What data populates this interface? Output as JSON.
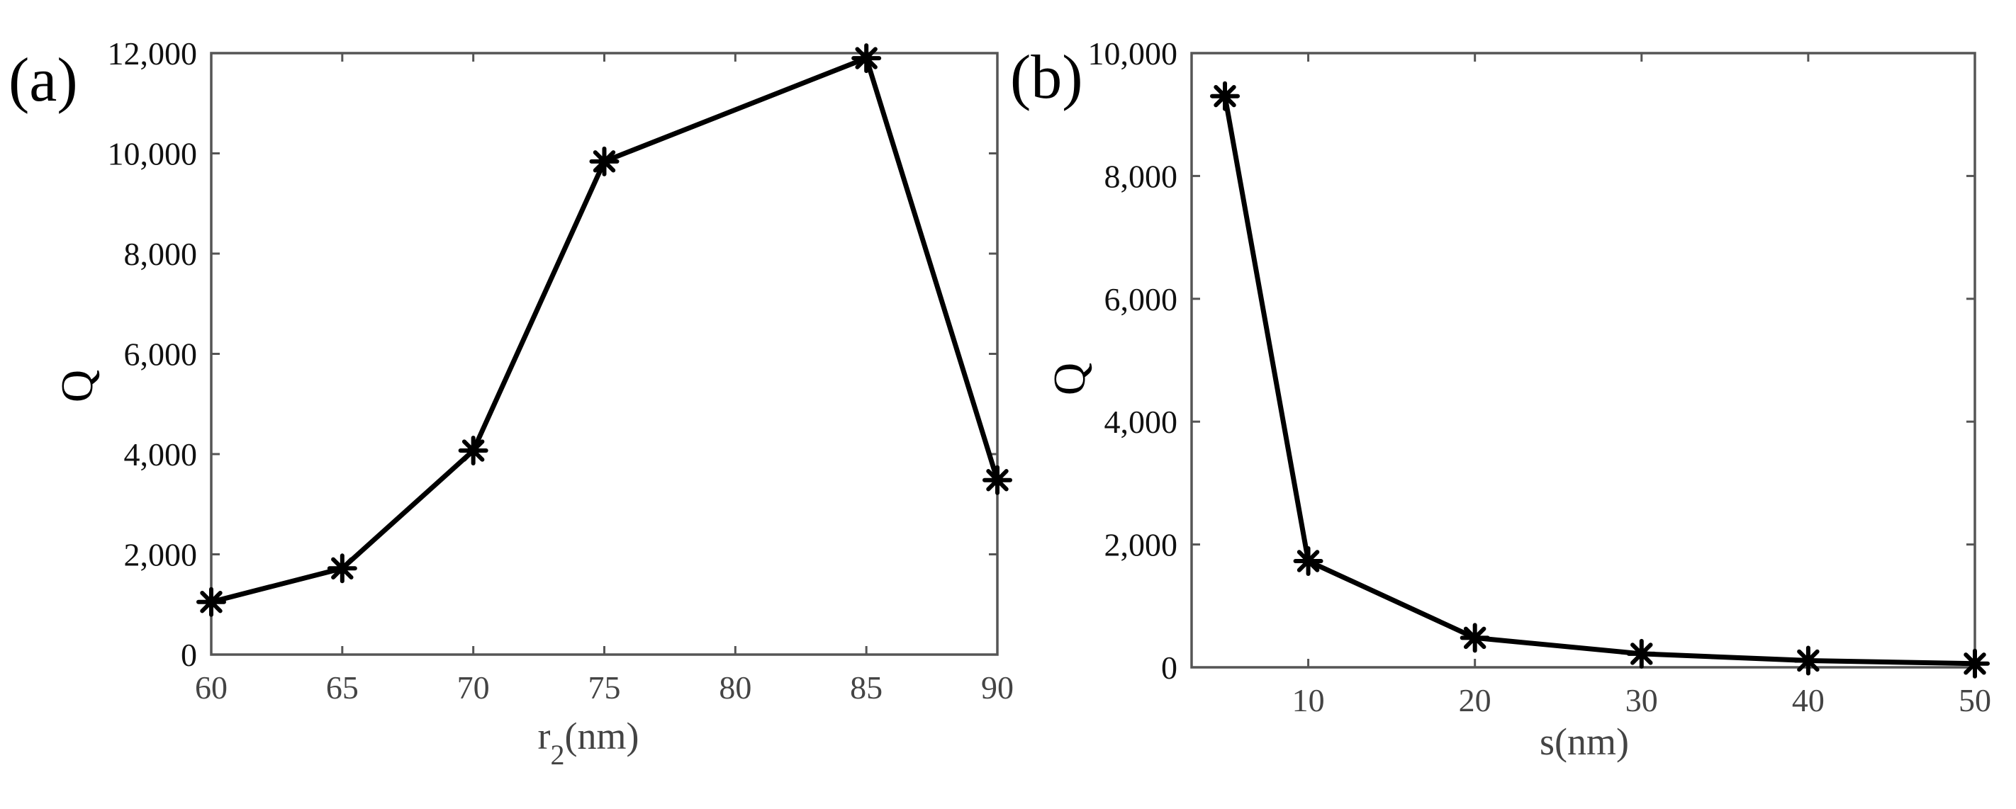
{
  "figure": {
    "panels": [
      {
        "id": "a",
        "label": "(a)"
      },
      {
        "id": "b",
        "label": "(b)"
      }
    ]
  },
  "colors": {
    "line": "#000000",
    "axis": "#555555",
    "tick_label_x": "#444444",
    "tick_label_y": "#111111",
    "background": "#ffffff"
  },
  "chart_data": [
    {
      "panel": "(a)",
      "type": "line",
      "title": "",
      "xlabel": "r2(nm)",
      "xlabel_main": "r",
      "xlabel_sub": "2",
      "xlabel_unit": "(nm)",
      "ylabel": "Q",
      "x": [
        60,
        65,
        70,
        75,
        85,
        90
      ],
      "series": [
        {
          "name": "Q",
          "marker": "asterisk",
          "values": [
            1050,
            1720,
            4070,
            9840,
            11900,
            3480
          ]
        }
      ],
      "xlim": [
        60,
        90
      ],
      "ylim": [
        0,
        12000
      ],
      "xticks": [
        60,
        65,
        70,
        75,
        80,
        85,
        90
      ],
      "xtick_labels": [
        "60",
        "65",
        "70",
        "75",
        "80",
        "85",
        "90"
      ],
      "yticks": [
        0,
        2000,
        4000,
        6000,
        8000,
        10000,
        12000
      ],
      "ytick_labels": [
        "0",
        "2,000",
        "4,000",
        "6,000",
        "8,000",
        "10,000",
        "12,000"
      ],
      "grid": false,
      "legend": null
    },
    {
      "panel": "(b)",
      "type": "line",
      "title": "",
      "xlabel": "s(nm)",
      "ylabel": "Q",
      "x": [
        5,
        10,
        20,
        30,
        40,
        50
      ],
      "series": [
        {
          "name": "Q",
          "marker": "asterisk",
          "values": [
            9300,
            1730,
            480,
            220,
            110,
            60
          ]
        }
      ],
      "xlim": [
        3,
        50
      ],
      "ylim": [
        0,
        10000
      ],
      "xticks": [
        10,
        20,
        30,
        40,
        50
      ],
      "xtick_labels": [
        "10",
        "20",
        "30",
        "40",
        "50"
      ],
      "yticks": [
        0,
        2000,
        4000,
        6000,
        8000,
        10000
      ],
      "ytick_labels": [
        "0",
        "2,000",
        "4,000",
        "6,000",
        "8,000",
        "10,000"
      ],
      "grid": false,
      "legend": null
    }
  ]
}
